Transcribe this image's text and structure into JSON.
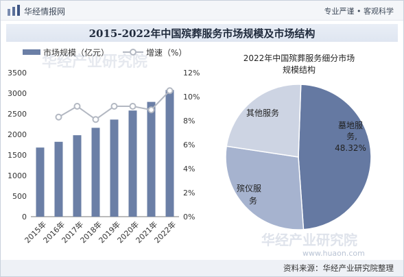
{
  "header": {
    "brand": "华经情报网",
    "slogan": "专业严谨 • 客观科学"
  },
  "title": "2015-2022年中国殡葬服务市场规模及市场结构",
  "colors": {
    "bar": "#6b7fa6",
    "line": "#b3b8c2",
    "pie_large": "#6579a2",
    "pie_mid": "#a6b3cf",
    "pie_small": "#cdd4e3"
  },
  "chart_data": [
    {
      "type": "bar",
      "categories": [
        "2015年",
        "2016年",
        "2017年",
        "2018年",
        "2019年",
        "2020年",
        "2021年",
        "2022年"
      ],
      "series": [
        {
          "name": "市场规模（亿元）",
          "type": "bar",
          "axis": "left",
          "values": [
            1680,
            1820,
            1980,
            2160,
            2360,
            2580,
            2790,
            3080
          ]
        },
        {
          "name": "增速（%）",
          "type": "line",
          "axis": "right",
          "values": [
            null,
            8.3,
            9.2,
            8.1,
            9.2,
            9.2,
            8.9,
            10.5
          ]
        }
      ],
      "left_axis": {
        "ylim": [
          0,
          3500
        ],
        "ticks": [
          "0",
          "500",
          "1000",
          "1500",
          "2000",
          "2500",
          "3000",
          "3500"
        ]
      },
      "right_axis": {
        "ylim": [
          0,
          12
        ],
        "ticks": [
          "0%",
          "2%",
          "4%",
          "6%",
          "8%",
          "10%",
          "12%"
        ]
      },
      "legend": "top-left",
      "grid": false
    },
    {
      "type": "pie",
      "title": "2022年中国殡葬服务细分市场规模结构",
      "slices": [
        {
          "label": "墓地服务,",
          "value_label": "48.32%",
          "value": 48.32
        },
        {
          "label": "殡仪服务",
          "value": 28.5
        },
        {
          "label": "其他服务",
          "value": 23.18
        }
      ]
    }
  ],
  "watermark": {
    "cn": "华经产业研究院",
    "url": "www.huaon.com"
  },
  "footer": {
    "source": "资料来源：华经产业研究院整理"
  }
}
